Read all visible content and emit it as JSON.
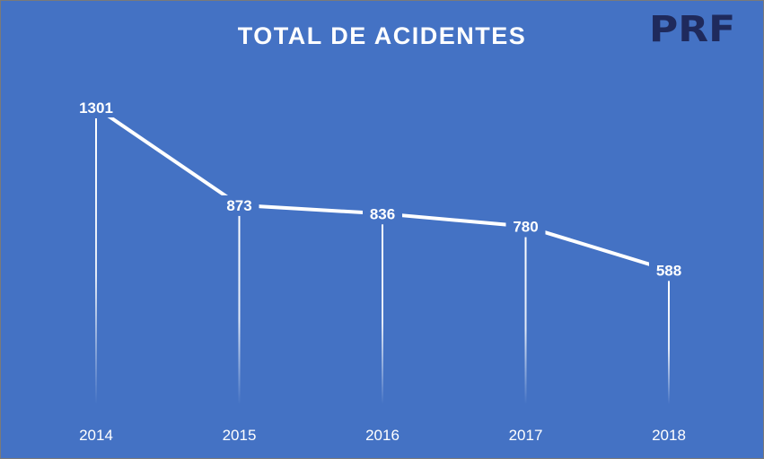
{
  "logo": {
    "text": "PRF"
  },
  "chart_data": {
    "type": "line",
    "title": "TOTAL DE ACIDENTES",
    "categories": [
      "2014",
      "2015",
      "2016",
      "2017",
      "2018"
    ],
    "values": [
      1301,
      873,
      836,
      780,
      588
    ],
    "data_labels": true,
    "grid": false,
    "legend": "none",
    "colors": {
      "background": "#4472c4",
      "line": "#ffffff",
      "logo": "#1f2a5c"
    }
  }
}
